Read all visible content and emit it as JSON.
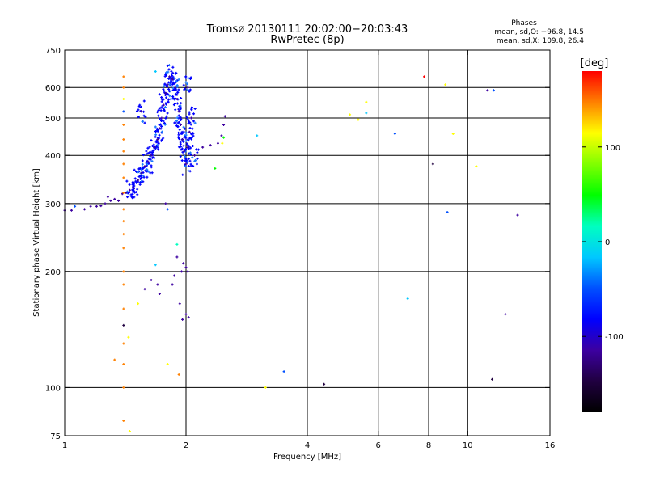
{
  "chart_data": {
    "type": "scatter",
    "title_line1": "Tromsø 20130111 20:02:00−20:03:43",
    "title_line2": "RwPretec (8p)",
    "xlabel": "Frequency [MHz]",
    "ylabel": "Stationary phase Virtual Height [km]",
    "x_scale": "log",
    "y_scale": "log",
    "xlim": [
      1,
      16
    ],
    "ylim": [
      75,
      750
    ],
    "x_ticks": [
      1,
      2,
      4,
      6,
      8,
      10,
      16
    ],
    "y_ticks": [
      75,
      100,
      200,
      300,
      400,
      500,
      600,
      750
    ],
    "grid": true,
    "stats": {
      "heading": "Phases",
      "line1": "mean, sd,O: −96.8, 14.5",
      "line2": "mean, sd,X: 109.8, 26.4"
    },
    "colorbar": {
      "label": "[deg]",
      "range": [
        -180,
        180
      ],
      "ticks": [
        100,
        0,
        -100
      ],
      "colors": [
        "#ff0000",
        "#ff8000",
        "#ffff00",
        "#80ff00",
        "#00ff00",
        "#00ffc0",
        "#00c8ff",
        "#0050ff",
        "#0000ff",
        "#3c00a0",
        "#200040",
        "#000000"
      ]
    },
    "points": [
      {
        "x": 1.0,
        "y": 288,
        "c": -100
      },
      {
        "x": 1.04,
        "y": 288,
        "c": -100
      },
      {
        "x": 1.06,
        "y": 295,
        "c": -60
      },
      {
        "x": 1.12,
        "y": 290,
        "c": -100
      },
      {
        "x": 1.16,
        "y": 295,
        "c": -100
      },
      {
        "x": 1.2,
        "y": 295,
        "c": -100
      },
      {
        "x": 1.23,
        "y": 296,
        "c": -100
      },
      {
        "x": 1.26,
        "y": 300,
        "c": -100
      },
      {
        "x": 1.28,
        "y": 312,
        "c": -100
      },
      {
        "x": 1.3,
        "y": 305,
        "c": -100
      },
      {
        "x": 1.33,
        "y": 308,
        "c": -100
      },
      {
        "x": 1.36,
        "y": 305,
        "c": -100
      },
      {
        "x": 1.39,
        "y": 318,
        "c": -100
      },
      {
        "x": 1.42,
        "y": 320,
        "c": -100
      },
      {
        "x": 1.45,
        "y": 325,
        "c": -100
      },
      {
        "x": 1.48,
        "y": 330,
        "c": -100
      },
      {
        "x": 1.52,
        "y": 345,
        "c": -100
      },
      {
        "x": 1.55,
        "y": 360,
        "c": -100
      },
      {
        "x": 1.58,
        "y": 375,
        "c": -100
      },
      {
        "x": 1.61,
        "y": 385,
        "c": -100
      },
      {
        "x": 1.64,
        "y": 400,
        "c": -100
      },
      {
        "x": 1.67,
        "y": 420,
        "c": -100
      },
      {
        "x": 1.7,
        "y": 440,
        "c": -100
      },
      {
        "x": 1.72,
        "y": 470,
        "c": -100
      },
      {
        "x": 1.74,
        "y": 500,
        "c": -100
      },
      {
        "x": 1.76,
        "y": 540,
        "c": -100
      },
      {
        "x": 1.78,
        "y": 580,
        "c": -100
      },
      {
        "x": 1.8,
        "y": 610,
        "c": -100
      },
      {
        "x": 1.82,
        "y": 640,
        "c": -100
      },
      {
        "x": 1.85,
        "y": 630,
        "c": -100
      },
      {
        "x": 1.88,
        "y": 600,
        "c": -100
      },
      {
        "x": 1.9,
        "y": 560,
        "c": -100
      },
      {
        "x": 1.92,
        "y": 520,
        "c": -100
      },
      {
        "x": 1.94,
        "y": 480,
        "c": -100
      },
      {
        "x": 1.96,
        "y": 440,
        "c": -100
      },
      {
        "x": 1.98,
        "y": 410,
        "c": -100
      },
      {
        "x": 2.0,
        "y": 380,
        "c": -100
      },
      {
        "x": 2.02,
        "y": 420,
        "c": -100
      },
      {
        "x": 2.04,
        "y": 460,
        "c": -100
      },
      {
        "x": 2.06,
        "y": 500,
        "c": -100
      },
      {
        "x": 2.02,
        "y": 600,
        "c": -100
      },
      {
        "x": 2.1,
        "y": 400,
        "c": -100
      },
      {
        "x": 2.2,
        "y": 420,
        "c": -100
      },
      {
        "x": 2.3,
        "y": 425,
        "c": -100
      },
      {
        "x": 2.4,
        "y": 430,
        "c": -100
      },
      {
        "x": 2.45,
        "y": 450,
        "c": -100
      },
      {
        "x": 2.48,
        "y": 480,
        "c": -100
      },
      {
        "x": 2.5,
        "y": 505,
        "c": -100
      },
      {
        "x": 2.46,
        "y": 430,
        "c": 120
      },
      {
        "x": 2.48,
        "y": 445,
        "c": 60
      },
      {
        "x": 2.36,
        "y": 370,
        "c": 40
      },
      {
        "x": 1.68,
        "y": 660,
        "c": -30
      },
      {
        "x": 1.78,
        "y": 300,
        "c": -100
      },
      {
        "x": 1.8,
        "y": 290,
        "c": -60
      },
      {
        "x": 1.55,
        "y": 520,
        "c": -100
      },
      {
        "x": 1.68,
        "y": 208,
        "c": -20
      },
      {
        "x": 1.64,
        "y": 190,
        "c": -100
      },
      {
        "x": 1.7,
        "y": 185,
        "c": -100
      },
      {
        "x": 1.72,
        "y": 175,
        "c": -100
      },
      {
        "x": 1.85,
        "y": 185,
        "c": -100
      },
      {
        "x": 1.87,
        "y": 195,
        "c": -100
      },
      {
        "x": 1.9,
        "y": 218,
        "c": -100
      },
      {
        "x": 1.9,
        "y": 235,
        "c": 20
      },
      {
        "x": 1.95,
        "y": 200,
        "c": -100
      },
      {
        "x": 1.97,
        "y": 210,
        "c": -100
      },
      {
        "x": 2.0,
        "y": 205,
        "c": -100
      },
      {
        "x": 2.02,
        "y": 200,
        "c": -100
      },
      {
        "x": 1.93,
        "y": 165,
        "c": -100
      },
      {
        "x": 1.96,
        "y": 150,
        "c": -100
      },
      {
        "x": 2.0,
        "y": 155,
        "c": -100
      },
      {
        "x": 2.03,
        "y": 152,
        "c": -100
      },
      {
        "x": 1.8,
        "y": 115,
        "c": 130
      },
      {
        "x": 1.92,
        "y": 108,
        "c": 160
      },
      {
        "x": 1.52,
        "y": 165,
        "c": 120
      },
      {
        "x": 1.58,
        "y": 180,
        "c": -100
      },
      {
        "x": 1.4,
        "y": 640,
        "c": 160
      },
      {
        "x": 1.4,
        "y": 600,
        "c": 140
      },
      {
        "x": 1.4,
        "y": 560,
        "c": 120
      },
      {
        "x": 1.4,
        "y": 520,
        "c": -60
      },
      {
        "x": 1.4,
        "y": 480,
        "c": 160
      },
      {
        "x": 1.4,
        "y": 440,
        "c": 150
      },
      {
        "x": 1.4,
        "y": 410,
        "c": 160
      },
      {
        "x": 1.4,
        "y": 380,
        "c": 140
      },
      {
        "x": 1.4,
        "y": 350,
        "c": 160
      },
      {
        "x": 1.4,
        "y": 320,
        "c": 160
      },
      {
        "x": 1.4,
        "y": 290,
        "c": 150
      },
      {
        "x": 1.4,
        "y": 270,
        "c": 160
      },
      {
        "x": 1.4,
        "y": 250,
        "c": 160
      },
      {
        "x": 1.4,
        "y": 230,
        "c": 160
      },
      {
        "x": 1.4,
        "y": 200,
        "c": 160
      },
      {
        "x": 1.4,
        "y": 185,
        "c": 150
      },
      {
        "x": 1.4,
        "y": 160,
        "c": 160
      },
      {
        "x": 1.4,
        "y": 145,
        "c": -140
      },
      {
        "x": 1.4,
        "y": 130,
        "c": 140
      },
      {
        "x": 1.4,
        "y": 115,
        "c": 160
      },
      {
        "x": 1.4,
        "y": 100,
        "c": 160
      },
      {
        "x": 1.4,
        "y": 82,
        "c": 140
      },
      {
        "x": 1.33,
        "y": 118,
        "c": 150
      },
      {
        "x": 1.44,
        "y": 135,
        "c": 110
      },
      {
        "x": 1.45,
        "y": 77,
        "c": 110
      },
      {
        "x": 3.0,
        "y": 450,
        "c": -20
      },
      {
        "x": 3.5,
        "y": 110,
        "c": -60
      },
      {
        "x": 4.4,
        "y": 102,
        "c": -150
      },
      {
        "x": 3.15,
        "y": 100,
        "c": 100
      },
      {
        "x": 5.1,
        "y": 510,
        "c": 110
      },
      {
        "x": 5.35,
        "y": 495,
        "c": 110
      },
      {
        "x": 5.6,
        "y": 550,
        "c": 110
      },
      {
        "x": 5.6,
        "y": 515,
        "c": -20
      },
      {
        "x": 6.6,
        "y": 455,
        "c": -40
      },
      {
        "x": 7.1,
        "y": 170,
        "c": -20
      },
      {
        "x": 7.8,
        "y": 640,
        "c": 170
      },
      {
        "x": 8.2,
        "y": 380,
        "c": -150
      },
      {
        "x": 8.8,
        "y": 610,
        "c": 110
      },
      {
        "x": 8.9,
        "y": 285,
        "c": -60
      },
      {
        "x": 9.2,
        "y": 455,
        "c": 120
      },
      {
        "x": 10.5,
        "y": 375,
        "c": 130
      },
      {
        "x": 11.2,
        "y": 590,
        "c": -100
      },
      {
        "x": 11.6,
        "y": 590,
        "c": -40
      },
      {
        "x": 11.5,
        "y": 105,
        "c": -150
      },
      {
        "x": 12.4,
        "y": 155,
        "c": -100
      },
      {
        "x": 13.3,
        "y": 280,
        "c": -100
      }
    ]
  }
}
